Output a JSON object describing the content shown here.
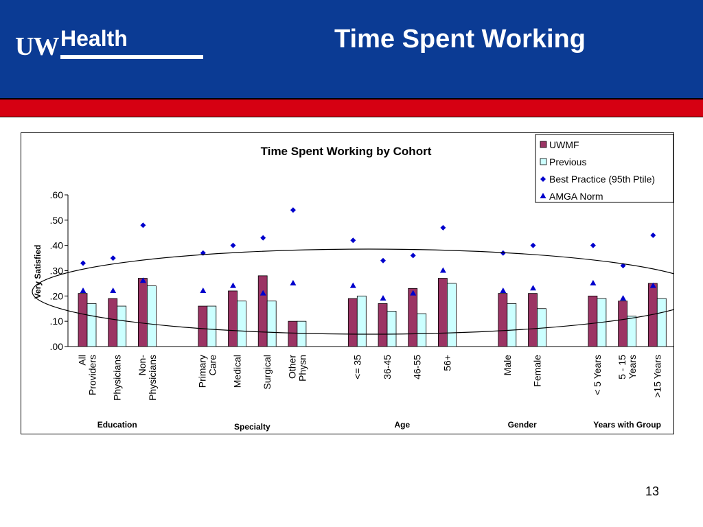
{
  "header": {
    "logo_uw": "UW",
    "logo_health": "Health",
    "title": "Time Spent Working"
  },
  "footer": {
    "page_number": "13"
  },
  "colors": {
    "header_bg": "#0b3b94",
    "red_band": "#d60012",
    "uwmf_bar": "#9b3464",
    "previous_bar": "#ccffff",
    "marker": "#0000cc"
  },
  "chart_data": {
    "type": "bar",
    "title": "Time Spent Working by Cohort",
    "ylabel": "Very Satisfied",
    "xlabel": "",
    "ylim": [
      0,
      0.6
    ],
    "yticks": [
      ".00",
      ".10",
      ".20",
      ".30",
      ".40",
      ".50",
      ".60"
    ],
    "categories": [
      [
        "All",
        "Providers"
      ],
      [
        "Physicians"
      ],
      [
        "Non-",
        "Physicians"
      ],
      [
        "Primary",
        "Care"
      ],
      [
        "Medical"
      ],
      [
        "Surgical"
      ],
      [
        "Other",
        "Physn"
      ],
      [
        "<= 35"
      ],
      [
        "36-45"
      ],
      [
        "46-55"
      ],
      [
        "56+"
      ],
      [
        "Male"
      ],
      [
        "Female"
      ],
      [
        "< 5 Years"
      ],
      [
        "5 - 15",
        "Years"
      ],
      [
        ">15 Years"
      ]
    ],
    "groups": [
      {
        "label": "Education",
        "start": 0,
        "end": 2
      },
      {
        "label": "Specialty",
        "start": 3,
        "end": 6
      },
      {
        "label": "Age",
        "start": 7,
        "end": 10
      },
      {
        "label": "Gender",
        "start": 11,
        "end": 12
      },
      {
        "label": "Years with Group",
        "start": 13,
        "end": 15
      }
    ],
    "series": [
      {
        "name": "UWMF",
        "kind": "bar",
        "values": [
          0.21,
          0.19,
          0.27,
          0.16,
          0.22,
          0.28,
          0.1,
          0.19,
          0.17,
          0.23,
          0.27,
          0.21,
          0.21,
          0.2,
          0.18,
          0.25
        ]
      },
      {
        "name": "Previous",
        "kind": "bar",
        "values": [
          0.17,
          0.16,
          0.24,
          0.16,
          0.18,
          0.18,
          0.1,
          0.2,
          0.14,
          0.13,
          0.25,
          0.17,
          0.15,
          0.19,
          0.12,
          0.19
        ]
      },
      {
        "name": "Best Practice (95th Ptile)",
        "kind": "diamond",
        "values": [
          0.33,
          0.35,
          0.48,
          0.37,
          0.4,
          0.43,
          0.54,
          0.42,
          0.34,
          0.36,
          0.47,
          0.37,
          0.4,
          0.4,
          0.32,
          0.44
        ]
      },
      {
        "name": "AMGA Norm",
        "kind": "triangle",
        "values": [
          0.22,
          0.22,
          0.26,
          0.22,
          0.24,
          0.21,
          0.25,
          0.24,
          0.19,
          0.21,
          0.3,
          0.22,
          0.23,
          0.25,
          0.19,
          0.24
        ]
      }
    ],
    "legend_position": "top-right",
    "grid": false
  }
}
